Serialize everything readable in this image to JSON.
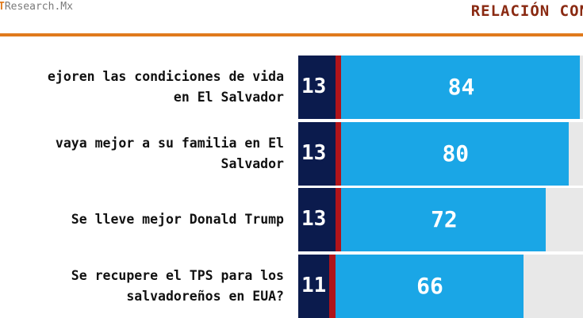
{
  "header": {
    "brand_mark": "T",
    "brand_rest": "Research.Mx",
    "title": "RELACIÓN CON"
  },
  "colors": {
    "dark": "#0b1b4d",
    "red": "#b0141a",
    "blue": "#1aa6e6",
    "accent": "#e07a1c"
  },
  "chart_data": {
    "type": "bar",
    "orientation": "horizontal",
    "stacked": true,
    "categories": [
      [
        "ejoren las condiciones de vida",
        "en El Salvador"
      ],
      [
        "vaya mejor a su familia en El",
        "Salvador"
      ],
      [
        "Se lleve mejor Donald Trump"
      ],
      [
        "Se recupere el TPS para los",
        "salvadoreños en EUA?"
      ]
    ],
    "series": [
      {
        "values": [
          13,
          13,
          13,
          11
        ]
      },
      {
        "values": [
          2,
          2,
          2,
          2
        ]
      },
      {
        "values": [
          84,
          80,
          72,
          66
        ]
      }
    ]
  }
}
